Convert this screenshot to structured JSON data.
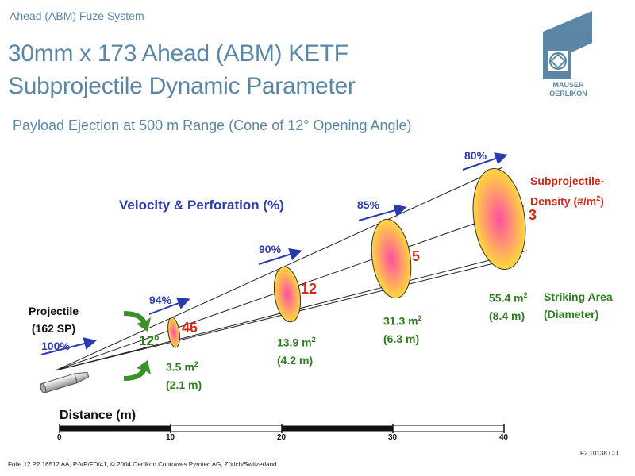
{
  "header": {
    "label": "Ahead (ABM) Fuze System",
    "title_line1": "30mm x 173 Ahead (ABM) KETF",
    "title_line2": "Subprojectile Dynamic Parameter",
    "subtitle": "Payload Ejection at 500 m Range (Cone of 12° Opening Angle)"
  },
  "logo": {
    "line1": "MAUSER",
    "line2": "OERLIKON",
    "color": "#5b86a6"
  },
  "diagram": {
    "velocity_title": "Velocity & Perforation (%)",
    "projectile_label_line1": "Projectile",
    "projectile_label_line2": "(162 SP)",
    "projectile_velocity": "100%",
    "cone_angle": "12°",
    "density_legend_line1": "Subprojectile-",
    "density_legend_line2": "Density (#/m",
    "density_legend_sup": "2",
    "density_legend_end": ")",
    "striking_legend_line1": "Striking Area",
    "striking_legend_line2": "(Diameter)",
    "distance_title": "Distance (m)",
    "axis_ticks": [
      "0",
      "10",
      "20",
      "30",
      "40"
    ],
    "ellipses": [
      {
        "velocity": "94%",
        "density": "46",
        "area": "3.5 m",
        "area_sup": "2",
        "diameter": "(2.1 m)"
      },
      {
        "velocity": "90%",
        "density": "12",
        "area": "13.9 m",
        "area_sup": "2",
        "diameter": "(4.2 m)"
      },
      {
        "velocity": "85%",
        "density": "5",
        "area": "31.3 m",
        "area_sup": "2",
        "diameter": "(6.3 m)"
      },
      {
        "velocity": "80%",
        "density": "3",
        "area": "55.4 m",
        "area_sup": "2",
        "diameter": "(8.4 m)"
      }
    ],
    "colors": {
      "velocity": "#2a3bb0",
      "density": "#cc2a1a",
      "area": "#2e7d1e",
      "ellipse_core": "#ff4fa0",
      "ellipse_edge": "#ffd83a"
    }
  },
  "footer": {
    "text": "Folie 12      P2 16512 AA, P-VP/FD/41, © 2004 Oerlikon Contraves Pyrotec AG, Zürich/Switzerland",
    "ref_code": "F2 10138 CD"
  }
}
